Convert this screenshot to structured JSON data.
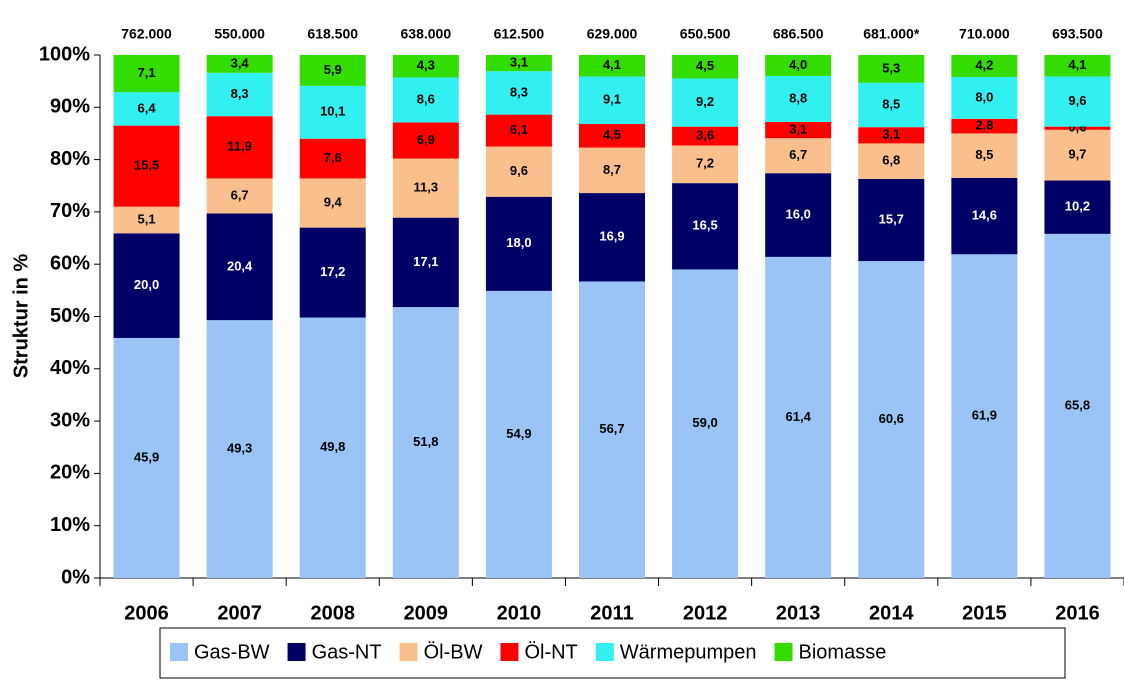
{
  "chart_data": {
    "type": "stacked_bar",
    "y_label": "Struktur in %",
    "categories": [
      "2006",
      "2007",
      "2008",
      "2009",
      "2010",
      "2011",
      "2012",
      "2013",
      "2014",
      "2015",
      "2016"
    ],
    "top_labels": [
      "762.000",
      "550.000",
      "618.500",
      "638.000",
      "612.500",
      "629.000",
      "650.500",
      "686.500",
      "681.000*",
      "710.000",
      "693.500"
    ],
    "series": [
      {
        "name": "Gas-BW",
        "color": "#99c4f5",
        "label_color": "#000000",
        "values": [
          45.9,
          49.3,
          49.8,
          51.8,
          54.9,
          56.7,
          59.0,
          61.4,
          60.6,
          61.9,
          65.8
        ],
        "value_labels": [
          "45,9",
          "49,3",
          "49,8",
          "51,8",
          "54,9",
          "56,7",
          "59,0",
          "61,4",
          "60,6",
          "61,9",
          "65,8"
        ]
      },
      {
        "name": "Gas-NT",
        "color": "#000066",
        "label_color": "#ffffff",
        "values": [
          20.0,
          20.4,
          17.2,
          17.1,
          18.0,
          16.9,
          16.5,
          16.0,
          15.7,
          14.6,
          10.2
        ],
        "value_labels": [
          "20,0",
          "20,4",
          "17,2",
          "17,1",
          "18,0",
          "16,9",
          "16,5",
          "16,0",
          "15,7",
          "14,6",
          "10,2"
        ]
      },
      {
        "name": "Öl-BW",
        "color": "#f9c08e",
        "label_color": "#000000",
        "values": [
          5.1,
          6.7,
          9.4,
          11.3,
          9.6,
          8.7,
          7.2,
          6.7,
          6.8,
          8.5,
          9.7
        ],
        "value_labels": [
          "5,1",
          "6,7",
          "9,4",
          "11,3",
          "9,6",
          "8,7",
          "7,2",
          "6,7",
          "6,8",
          "8,5",
          "9,7"
        ]
      },
      {
        "name": "Öl-NT",
        "color": "#ff0000",
        "label_color": "#000000",
        "values": [
          15.5,
          11.9,
          7.6,
          6.9,
          6.1,
          4.5,
          3.6,
          3.1,
          3.1,
          2.8,
          0.6
        ],
        "value_labels": [
          "15,5",
          "11,9",
          "7,6",
          "6,9",
          "6,1",
          "4,5",
          "3,6",
          "3,1",
          "3,1",
          "2,8",
          "0,6"
        ]
      },
      {
        "name": "Wärmepumpen",
        "color": "#33f0f0",
        "label_color": "#000000",
        "values": [
          6.4,
          8.3,
          10.1,
          8.6,
          8.3,
          9.1,
          9.2,
          8.8,
          8.5,
          8.0,
          9.6
        ],
        "value_labels": [
          "6,4",
          "8,3",
          "10,1",
          "8,6",
          "8,3",
          "9,1",
          "9,2",
          "8,8",
          "8,5",
          "8,0",
          "9,6"
        ]
      },
      {
        "name": "Biomasse",
        "color": "#33dd00",
        "label_color": "#000000",
        "values": [
          7.1,
          3.4,
          5.9,
          4.3,
          3.1,
          4.1,
          4.5,
          4.0,
          5.3,
          4.2,
          4.1
        ],
        "value_labels": [
          "7,1",
          "3,4",
          "5,9",
          "4,3",
          "3,1",
          "4,1",
          "4,5",
          "4,0",
          "5,3",
          "4,2",
          "4,1"
        ]
      }
    ],
    "ylim": [
      0,
      100
    ],
    "yticks": [
      {
        "value": 0,
        "label": "0%"
      },
      {
        "value": 10,
        "label": "10%"
      },
      {
        "value": 20,
        "label": "20%"
      },
      {
        "value": 30,
        "label": "30%"
      },
      {
        "value": 40,
        "label": "40%"
      },
      {
        "value": 50,
        "label": "50%"
      },
      {
        "value": 60,
        "label": "60%"
      },
      {
        "value": 70,
        "label": "70%"
      },
      {
        "value": 80,
        "label": "80%"
      },
      {
        "value": 90,
        "label": "90%"
      },
      {
        "value": 100,
        "label": "100%"
      }
    ],
    "legend": "bottom"
  }
}
